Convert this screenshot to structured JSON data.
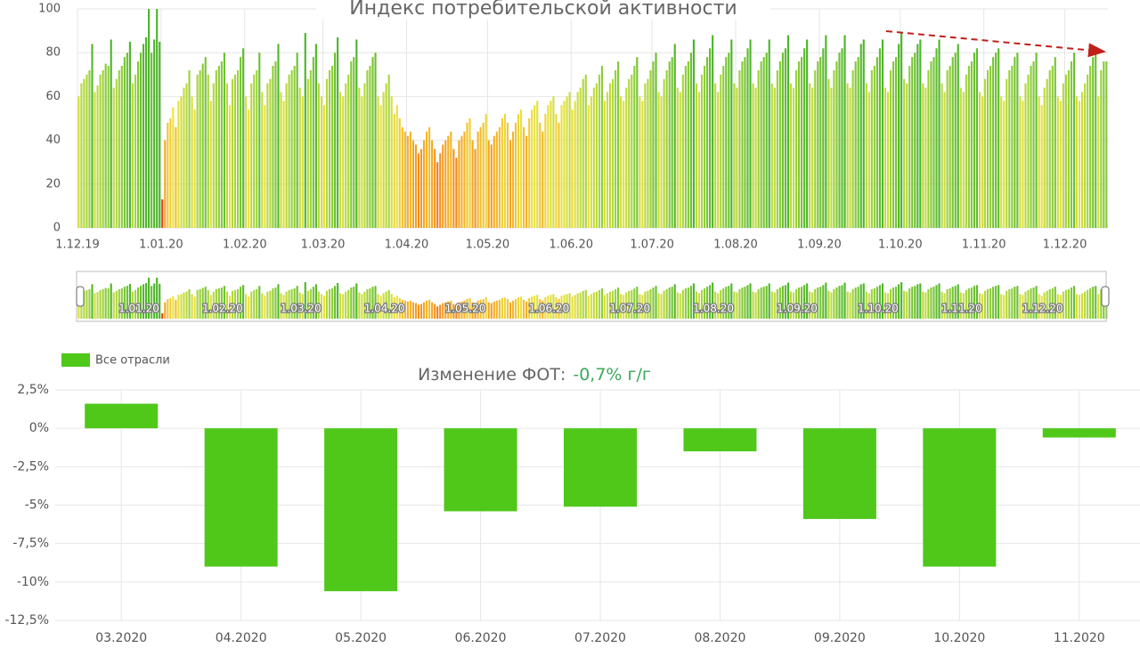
{
  "chart_data": [
    {
      "type": "bar",
      "title": "Индекс потребительской активности",
      "values": [
        60,
        66,
        68,
        70,
        72,
        84,
        62,
        65,
        70,
        72,
        75,
        74,
        86,
        64,
        68,
        72,
        74,
        78,
        80,
        85,
        66,
        70,
        76,
        80,
        84,
        87,
        100,
        80,
        86,
        100,
        85,
        13,
        40,
        48,
        50,
        55,
        46,
        58,
        60,
        64,
        66,
        72,
        60,
        54,
        70,
        72,
        75,
        78,
        70,
        58,
        66,
        72,
        74,
        76,
        80,
        66,
        56,
        68,
        70,
        72,
        78,
        82,
        60,
        54,
        66,
        70,
        72,
        80,
        62,
        56,
        66,
        68,
        74,
        76,
        84,
        62,
        58,
        66,
        70,
        72,
        74,
        80,
        64,
        60,
        89,
        68,
        72,
        78,
        84,
        66,
        60,
        56,
        68,
        72,
        74,
        80,
        87,
        62,
        60,
        66,
        70,
        76,
        78,
        86,
        64,
        60,
        66,
        72,
        74,
        78,
        80,
        60,
        56,
        62,
        66,
        70,
        60,
        52,
        56,
        50,
        46,
        44,
        42,
        44,
        40,
        38,
        34,
        36,
        40,
        44,
        46,
        40,
        36,
        30,
        34,
        38,
        40,
        42,
        44,
        36,
        32,
        40,
        42,
        44,
        48,
        50,
        40,
        36,
        44,
        46,
        48,
        52,
        40,
        38,
        42,
        44,
        46,
        50,
        52,
        48,
        40,
        44,
        48,
        52,
        54,
        46,
        42,
        50,
        54,
        56,
        58,
        48,
        44,
        52,
        56,
        58,
        60,
        52,
        48,
        56,
        58,
        60,
        62,
        54,
        58,
        62,
        64,
        68,
        70,
        56,
        60,
        64,
        66,
        70,
        74,
        58,
        62,
        66,
        68,
        72,
        76,
        60,
        58,
        64,
        68,
        70,
        74,
        78,
        60,
        58,
        66,
        68,
        72,
        76,
        80,
        62,
        60,
        68,
        72,
        76,
        78,
        84,
        64,
        62,
        70,
        74,
        76,
        80,
        86,
        66,
        62,
        70,
        74,
        78,
        82,
        88,
        66,
        62,
        70,
        74,
        78,
        80,
        86,
        66,
        64,
        72,
        76,
        78,
        82,
        86,
        66,
        64,
        72,
        76,
        78,
        80,
        86,
        66,
        64,
        72,
        76,
        80,
        82,
        88,
        66,
        64,
        72,
        76,
        78,
        82,
        86,
        66,
        64,
        72,
        76,
        78,
        82,
        88,
        68,
        64,
        72,
        76,
        80,
        82,
        88,
        66,
        64,
        72,
        76,
        78,
        84,
        86,
        66,
        62,
        72,
        74,
        78,
        82,
        86,
        64,
        62,
        72,
        76,
        78,
        84,
        89,
        68,
        66,
        74,
        78,
        80,
        84,
        86,
        66,
        64,
        72,
        76,
        78,
        82,
        86,
        66,
        62,
        72,
        74,
        78,
        80,
        84,
        64,
        62,
        70,
        74,
        76,
        80,
        82,
        62,
        60,
        68,
        72,
        74,
        78,
        80,
        82,
        60,
        58,
        68,
        72,
        74,
        78,
        80,
        60,
        58,
        66,
        70,
        74,
        76,
        80,
        60,
        56,
        64,
        68,
        72,
        74,
        78,
        60,
        58,
        66,
        70,
        72,
        76,
        80,
        60,
        58,
        62,
        66,
        70,
        74,
        78,
        80,
        60,
        72,
        76,
        76
      ],
      "color_scale": [
        {
          "value": 15,
          "color": "#e8401c"
        },
        {
          "value": 40,
          "color": "#f5a623"
        },
        {
          "value": 55,
          "color": "#eee23e"
        },
        {
          "value": 70,
          "color": "#a6d63e"
        },
        {
          "value": 85,
          "color": "#4cb52a"
        }
      ],
      "xlim": [
        0,
        382
      ],
      "xticks": [
        {
          "value": 0,
          "label": "1.12.19"
        },
        {
          "value": 31,
          "label": "1.01.20"
        },
        {
          "value": 62,
          "label": "1.02.20"
        },
        {
          "value": 91,
          "label": "1.03.20"
        },
        {
          "value": 122,
          "label": "1.04.20"
        },
        {
          "value": 152,
          "label": "1.05.20"
        },
        {
          "value": 183,
          "label": "1.06.20"
        },
        {
          "value": 213,
          "label": "1.07.20"
        },
        {
          "value": 244,
          "label": "1.08.20"
        },
        {
          "value": 275,
          "label": "1.09.20"
        },
        {
          "value": 305,
          "label": "1.10.20"
        },
        {
          "value": 336,
          "label": "1.11.20"
        },
        {
          "value": 366,
          "label": "1.12.20"
        }
      ],
      "ylim": [
        0,
        100
      ],
      "yticks": [
        0,
        20,
        40,
        60,
        80,
        100
      ],
      "grid": true
    },
    {
      "type": "bar",
      "title": "Изменение ФОТ:",
      "annotation": "-0,7% г/г",
      "categories": [
        "03.2020",
        "04.2020",
        "05.2020",
        "06.2020",
        "07.2020",
        "08.2020",
        "09.2020",
        "10.2020",
        "11.2020"
      ],
      "series": [
        {
          "name": "Все отрасли",
          "color": "#4fc81a",
          "values": [
            1.6,
            -9.0,
            -10.6,
            -5.4,
            -5.1,
            -1.5,
            -5.9,
            -9.0,
            -0.6
          ]
        }
      ],
      "ylim": [
        -12.5,
        2.5
      ],
      "yticks": [
        {
          "value": 2.5,
          "label": "2,5%"
        },
        {
          "value": 0,
          "label": "0%"
        },
        {
          "value": -2.5,
          "label": "-2,5%"
        },
        {
          "value": -5,
          "label": "-5%"
        },
        {
          "value": -7.5,
          "label": "-7,5%"
        },
        {
          "value": -10,
          "label": "-10%"
        },
        {
          "value": -12.5,
          "label": "-12,5%"
        }
      ],
      "grid": true
    }
  ]
}
